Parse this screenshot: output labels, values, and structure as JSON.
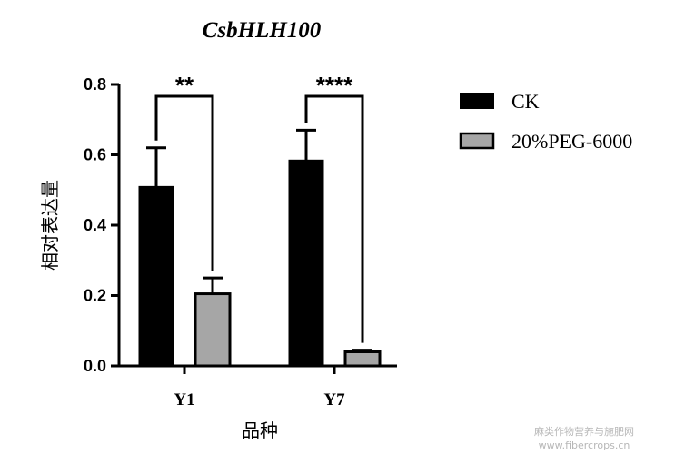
{
  "chart_data": {
    "type": "bar",
    "title": "CsbHLH100",
    "xlabel": "品种",
    "ylabel": "相对表达量",
    "categories": [
      "Y1",
      "Y7"
    ],
    "series": [
      {
        "name": "CK",
        "color": "#000000",
        "values": [
          0.51,
          0.585
        ],
        "errors": [
          0.11,
          0.085
        ]
      },
      {
        "name": "20%PEG-6000",
        "color": "#a6a6a6",
        "values": [
          0.205,
          0.04
        ],
        "errors": [
          0.045,
          0.005
        ]
      }
    ],
    "ylim": [
      0,
      0.8
    ],
    "yticks": [
      "0.0",
      "0.2",
      "0.4",
      "0.6",
      "0.8"
    ],
    "significance": [
      "**",
      "****"
    ],
    "grid": false,
    "legend_position": "right"
  },
  "watermark": {
    "line1": "麻类作物营养与施肥网",
    "line2": "www.fibercrops.cn"
  }
}
